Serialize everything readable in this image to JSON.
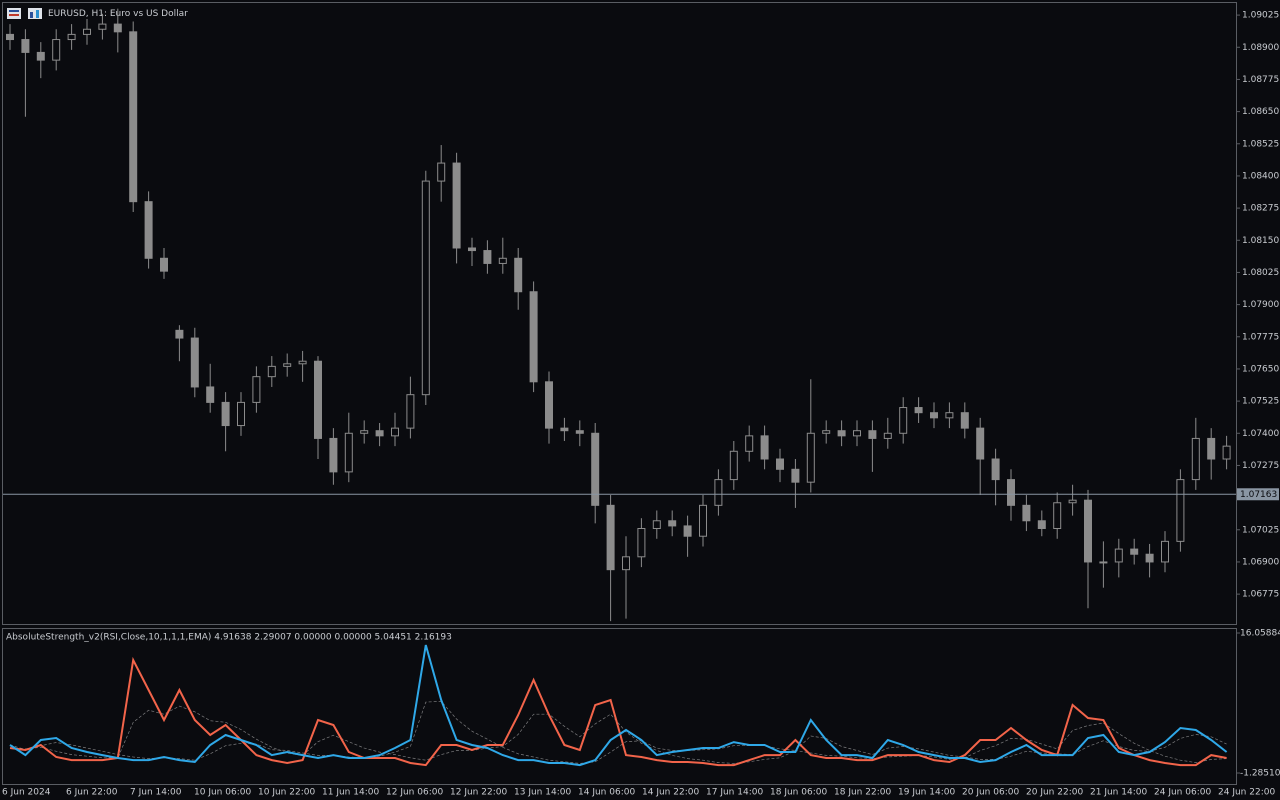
{
  "chart_data": [
    {
      "type": "candlestick",
      "title": "EURUSD, H1:  Euro vs US Dollar",
      "color": "#8c8c8c",
      "open": [
        1.0895,
        1.0893,
        1.0888,
        1.0885,
        1.0893,
        1.0895,
        1.0897,
        1.0899,
        1.0896,
        1.083,
        1.0808,
        1.078,
        1.0777,
        1.0758,
        1.0752,
        1.0743,
        1.0752,
        1.0762,
        1.0766,
        1.0767,
        1.0768,
        1.0738,
        1.0725,
        1.074,
        1.0741,
        1.0739,
        1.0742,
        1.0755,
        1.0838,
        1.0845,
        1.0812,
        1.0811,
        1.0806,
        1.0808,
        1.0795,
        1.076,
        1.0742,
        1.0741,
        1.074,
        1.0712,
        1.0687,
        1.0692,
        1.0703,
        1.0706,
        1.0704,
        1.07,
        1.0712,
        1.0722,
        1.0733,
        1.0739,
        1.073,
        1.0726,
        1.0721,
        1.074,
        1.0741,
        1.0739,
        1.0741,
        1.0738,
        1.074,
        1.075,
        1.0748,
        1.0746,
        1.0748,
        1.0742,
        1.073,
        1.0722,
        1.0712,
        1.0706,
        1.0703,
        1.0713,
        1.0714,
        1.069,
        1.069,
        1.0695,
        1.0693,
        1.069,
        1.0698,
        1.0722,
        1.0738,
        1.073
      ],
      "high": [
        1.0899,
        1.0897,
        1.0892,
        1.0897,
        1.0899,
        1.0901,
        1.0903,
        1.0905,
        1.09,
        1.0834,
        1.0812,
        1.0782,
        1.0781,
        1.0767,
        1.0756,
        1.0756,
        1.0766,
        1.077,
        1.0771,
        1.0772,
        1.077,
        1.0742,
        1.0748,
        1.0745,
        1.0744,
        1.0748,
        1.0762,
        1.0842,
        1.0852,
        1.0849,
        1.0816,
        1.0815,
        1.0816,
        1.0812,
        1.0799,
        1.0764,
        1.0746,
        1.0745,
        1.0744,
        1.0716,
        1.07,
        1.0707,
        1.071,
        1.071,
        1.0708,
        1.0716,
        1.0726,
        1.0737,
        1.0743,
        1.0743,
        1.0734,
        1.073,
        1.0761,
        1.0745,
        1.0745,
        1.0745,
        1.0745,
        1.0746,
        1.0754,
        1.0754,
        1.0752,
        1.0752,
        1.0752,
        1.0746,
        1.0734,
        1.0726,
        1.0716,
        1.071,
        1.0717,
        1.072,
        1.0718,
        1.0698,
        1.0699,
        1.0699,
        1.0697,
        1.0702,
        1.0726,
        1.0746,
        1.0742,
        1.0739
      ],
      "low": [
        1.0889,
        1.0863,
        1.0878,
        1.0881,
        1.0889,
        1.0891,
        1.0893,
        1.0888,
        1.0826,
        1.0804,
        1.08,
        1.0768,
        1.0754,
        1.0748,
        1.0733,
        1.0739,
        1.0748,
        1.0758,
        1.0762,
        1.076,
        1.073,
        1.072,
        1.0721,
        1.0736,
        1.0735,
        1.0735,
        1.0738,
        1.0751,
        1.083,
        1.0806,
        1.0805,
        1.0802,
        1.0802,
        1.0788,
        1.0756,
        1.0736,
        1.0737,
        1.0735,
        1.0705,
        1.0667,
        1.0668,
        1.0688,
        1.0699,
        1.07,
        1.0692,
        1.0696,
        1.0708,
        1.0718,
        1.0729,
        1.0726,
        1.0721,
        1.0711,
        1.0717,
        1.0736,
        1.0735,
        1.0735,
        1.0725,
        1.0734,
        1.0736,
        1.0744,
        1.0742,
        1.0742,
        1.0738,
        1.0716,
        1.0712,
        1.0706,
        1.0702,
        1.07,
        1.0699,
        1.0708,
        1.0672,
        1.068,
        1.0684,
        1.0689,
        1.0684,
        1.0686,
        1.0694,
        1.0718,
        1.0722,
        1.0726
      ],
      "close": [
        1.0893,
        1.0888,
        1.0885,
        1.0893,
        1.0895,
        1.0897,
        1.0899,
        1.0896,
        1.083,
        1.0808,
        1.0803,
        1.0777,
        1.0758,
        1.0752,
        1.0743,
        1.0752,
        1.0762,
        1.0766,
        1.0767,
        1.0768,
        1.0738,
        1.0725,
        1.074,
        1.0741,
        1.0739,
        1.0742,
        1.0755,
        1.0838,
        1.0845,
        1.0812,
        1.0811,
        1.0806,
        1.0808,
        1.0795,
        1.076,
        1.0742,
        1.0741,
        1.074,
        1.0712,
        1.0687,
        1.0692,
        1.0703,
        1.0706,
        1.0704,
        1.07,
        1.0712,
        1.0722,
        1.0733,
        1.0739,
        1.073,
        1.0726,
        1.0721,
        1.074,
        1.0741,
        1.0739,
        1.0741,
        1.0738,
        1.074,
        1.075,
        1.0748,
        1.0746,
        1.0748,
        1.0742,
        1.073,
        1.0722,
        1.0712,
        1.0706,
        1.0703,
        1.0713,
        1.0714,
        1.069,
        1.069,
        1.0695,
        1.0693,
        1.069,
        1.0698,
        1.0722,
        1.0738,
        1.073,
        1.0735
      ],
      "ylim": [
        1.06655,
        1.09072
      ],
      "yticks": [
        1.09025,
        {
          "value": 1.089,
          "label": "1.08900"
        },
        1.08775,
        {
          "value": 1.0865,
          "label": "1.08650"
        },
        1.08525,
        {
          "value": 1.084,
          "label": "1.08400"
        },
        1.08275,
        {
          "value": 1.0815,
          "label": "1.08150"
        },
        1.08025,
        {
          "value": 1.079,
          "label": "1.07900"
        },
        1.07775,
        {
          "value": 1.0765,
          "label": "1.07650"
        },
        1.07525,
        {
          "value": 1.074,
          "label": "1.07400"
        },
        1.07275,
        1.07025,
        {
          "value": 1.069,
          "label": "1.06900"
        },
        1.06775
      ],
      "current_price": 1.07163
    },
    {
      "type": "line",
      "title": "AbsoluteStrength_v2(RSI,Close,10,1,1,1,EMA) 4.91638 2.29007 0.00000 0.00000 5.04451 2.16193",
      "x_labels": [
        "6 Jun 2024",
        "6 Jun 22:00",
        "7 Jun 14:00",
        "10 Jun 06:00",
        "10 Jun 22:00",
        "11 Jun 14:00",
        "12 Jun 06:00",
        "12 Jun 22:00",
        "13 Jun 14:00",
        "14 Jun 06:00",
        "14 Jun 22:00",
        "17 Jun 14:00",
        "18 Jun 06:00",
        "18 Jun 22:00",
        "19 Jun 14:00",
        "20 Jun 06:00",
        "20 Jun 22:00",
        "21 Jun 14:00",
        "24 Jun 06:00",
        "24 Jun 22:00"
      ],
      "ylim": [
        -2.77,
        16.68
      ],
      "yticks": [
        16.05884,
        {
          "value": -1.2851,
          "label": "-1.28510"
        }
      ],
      "series": [
        {
          "color": "#c8c8c8",
          "dashed": true,
          "values": [
            1.8,
            1.7,
            1.9,
            1.4,
            1.0,
            0.8,
            0.6,
            0.6,
            5.0,
            6.5,
            6.0,
            7.0,
            6.3,
            5.2,
            5.0,
            4.1,
            2.9,
            1.9,
            1.2,
            0.9,
            2.6,
            3.4,
            2.6,
            1.8,
            1.3,
            1.0,
            0.6,
            0.3,
            1.0,
            1.5,
            1.5,
            1.8,
            2.0,
            3.5,
            6.0,
            6.0,
            4.5,
            3.2,
            4.8,
            6.0,
            3.8,
            2.4,
            1.5,
            0.9,
            0.5,
            0.3,
            0.0,
            -0.1,
            0.1,
            0.4,
            0.6,
            1.5,
            1.2,
            0.9,
            0.8,
            0.6,
            0.5,
            0.7,
            0.8,
            0.9,
            0.7,
            0.4,
            0.6,
            1.5,
            2.1,
            3.0,
            2.9,
            2.3,
            1.7,
            4.0,
            4.6,
            4.9,
            3.6,
            2.4,
            1.5,
            0.8,
            0.3,
            0.0,
            0.4,
            0.5
          ]
        },
        {
          "color": "#c8c8c8",
          "dashed": true,
          "values": [
            2.2,
            1.6,
            2.1,
            2.5,
            2.2,
            1.8,
            1.4,
            1.0,
            0.7,
            0.5,
            0.6,
            0.5,
            0.3,
            1.1,
            2.1,
            2.4,
            2.3,
            1.6,
            1.5,
            1.2,
            0.9,
            0.9,
            0.7,
            0.6,
            0.8,
            1.3,
            2.0,
            7.5,
            7.6,
            5.4,
            3.9,
            2.9,
            1.9,
            1.1,
            0.7,
            0.3,
            0.1,
            -0.1,
            0.1,
            1.3,
            2.6,
            2.7,
            1.8,
            1.5,
            1.5,
            1.6,
            1.7,
            2.1,
            2.1,
            2.1,
            1.7,
            1.5,
            3.3,
            3.0,
            2.0,
            1.5,
            1.0,
            1.8,
            2.0,
            1.7,
            1.3,
            0.9,
            0.7,
            0.4,
            0.4,
            0.8,
            1.4,
            1.2,
            1.1,
            1.0,
            2.0,
            2.7,
            2.0,
            1.5,
            1.4,
            1.9,
            3.0,
            3.5,
            3.2,
            2.3
          ]
        },
        {
          "color": "#f2644a",
          "values": [
            1.81,
            1.56,
            2.18,
            0.7,
            0.32,
            0.32,
            0.32,
            0.57,
            12.71,
            9.0,
            5.28,
            9.0,
            5.28,
            3.42,
            4.66,
            2.8,
            0.94,
            0.32,
            -0.05,
            0.32,
            5.28,
            4.66,
            1.32,
            0.57,
            0.57,
            0.57,
            -0.05,
            -0.3,
            2.18,
            2.18,
            1.56,
            2.18,
            2.18,
            5.9,
            10.24,
            5.9,
            2.18,
            1.56,
            7.14,
            7.76,
            0.94,
            0.7,
            0.32,
            0.08,
            0.08,
            -0.05,
            -0.3,
            -0.3,
            0.32,
            0.94,
            0.94,
            2.8,
            0.94,
            0.57,
            0.57,
            0.32,
            0.32,
            0.94,
            0.94,
            0.94,
            0.32,
            0.08,
            0.94,
            2.8,
            2.8,
            4.29,
            2.8,
            1.56,
            0.94,
            7.14,
            5.53,
            5.28,
            1.81,
            0.94,
            0.32,
            -0.05,
            -0.3,
            -0.3,
            0.94,
            0.57
          ]
        },
        {
          "color": "#2fa8e8",
          "values": [
            2.18,
            0.94,
            2.8,
            3.05,
            1.81,
            1.32,
            0.94,
            0.57,
            0.32,
            0.32,
            0.7,
            0.32,
            0.08,
            2.18,
            3.42,
            2.8,
            2.18,
            0.94,
            1.32,
            0.94,
            0.57,
            0.94,
            0.57,
            0.57,
            0.94,
            1.81,
            2.8,
            14.57,
            7.76,
            2.8,
            2.18,
            1.81,
            0.94,
            0.32,
            0.32,
            -0.05,
            -0.05,
            -0.3,
            0.32,
            2.8,
            4.04,
            2.8,
            0.94,
            1.32,
            1.56,
            1.81,
            1.81,
            2.55,
            2.18,
            2.18,
            1.32,
            1.32,
            5.28,
            2.8,
            0.94,
            0.94,
            0.57,
            2.8,
            2.18,
            1.32,
            0.94,
            0.57,
            0.57,
            0.08,
            0.32,
            1.32,
            2.18,
            0.94,
            0.94,
            0.94,
            3.05,
            3.42,
            1.32,
            0.94,
            1.32,
            2.55,
            4.29,
            4.04,
            2.8,
            1.32
          ]
        }
      ]
    }
  ]
}
